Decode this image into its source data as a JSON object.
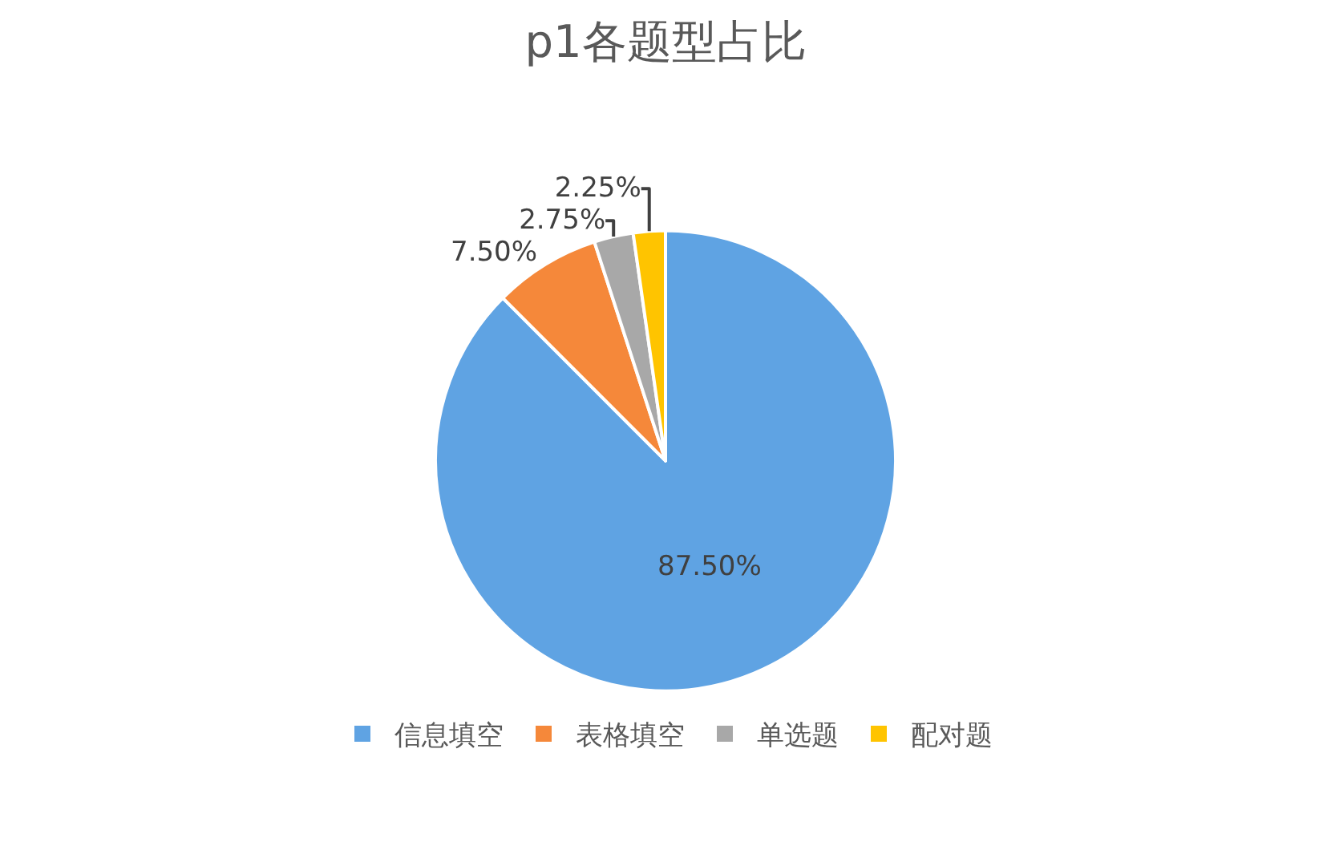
{
  "chart_data": {
    "type": "pie",
    "title": "p1各题型占比",
    "categories": [
      "信息填空",
      "表格填空",
      "单选题",
      "配对题"
    ],
    "values": [
      87.5,
      7.5,
      2.75,
      2.25
    ],
    "value_labels": [
      "87.50%",
      "7.50%",
      "2.75%",
      "2.25%"
    ],
    "colors": [
      "#5fa3e3",
      "#f5883a",
      "#a8a8a8",
      "#ffc400"
    ],
    "legend": "bottom"
  }
}
